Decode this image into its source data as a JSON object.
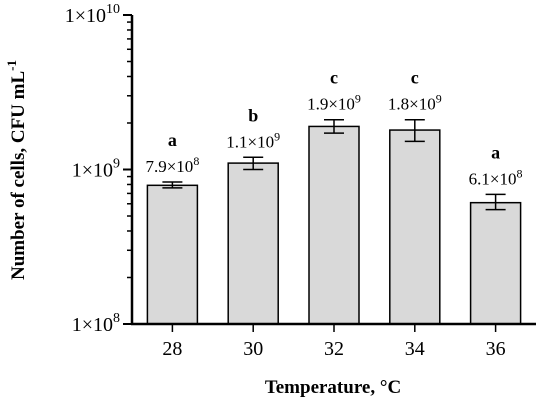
{
  "chart_data": {
    "type": "bar",
    "categories": [
      "28",
      "30",
      "32",
      "34",
      "36"
    ],
    "values": [
      790000000,
      1100000000,
      1900000000,
      1800000000,
      610000000
    ],
    "error_low": [
      760000000,
      1000000000,
      1720000000,
      1520000000,
      550000000
    ],
    "error_high": [
      830000000,
      1200000000,
      2100000000,
      2100000000,
      690000000
    ],
    "value_labels": [
      {
        "mantissa": "7.9",
        "exp": "8"
      },
      {
        "mantissa": "1.1",
        "exp": "9"
      },
      {
        "mantissa": "1.9",
        "exp": "9"
      },
      {
        "mantissa": "1.8",
        "exp": "9"
      },
      {
        "mantissa": "6.1",
        "exp": "8"
      }
    ],
    "significance_letters": [
      "a",
      "b",
      "c",
      "c",
      "a"
    ],
    "xlabel": "Temperature, °C",
    "ylabel": {
      "main": "Number of cells, CFU mL",
      "sup": "-1"
    },
    "y_scale": "log",
    "ylim": [
      100000000,
      10000000000
    ],
    "y_ticks": [
      {
        "value": 100000000,
        "base": "1×10",
        "exp": "8"
      },
      {
        "value": 1000000000,
        "base": "1×10",
        "exp": "9"
      },
      {
        "value": 10000000000,
        "base": "1×10",
        "exp": "10"
      }
    ],
    "bar_color": "#d9d9d9",
    "grid": false,
    "legend": "none"
  }
}
